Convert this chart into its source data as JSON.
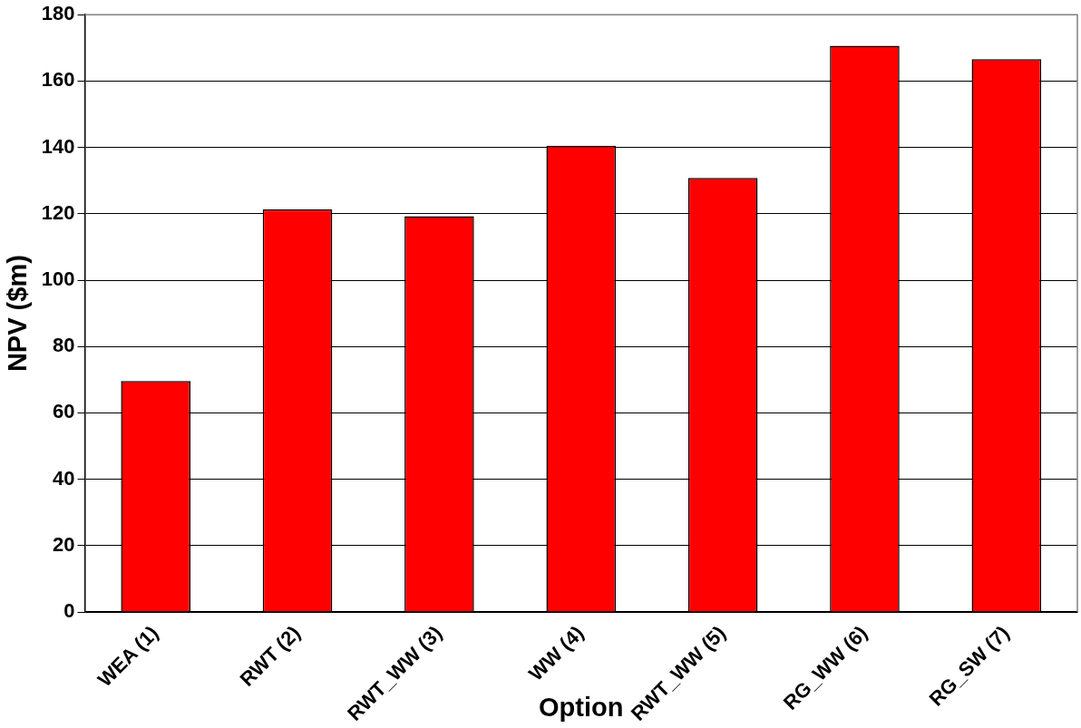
{
  "chart_data": {
    "type": "bar",
    "xlabel": "Option",
    "ylabel": "NPV ($m)",
    "categories": [
      "WEA (1)",
      "RWT (2)",
      "RWT_WW (3)",
      "WW (4)",
      "RWT_WW (5)",
      "RG_WW (6)",
      "RG_SW (7)"
    ],
    "values": [
      69.6,
      121.3,
      119.3,
      140.5,
      130.8,
      170.6,
      166.6
    ],
    "color": "#ff0000",
    "ylim": [
      0,
      180
    ],
    "yticks": [
      0,
      20,
      40,
      60,
      80,
      100,
      120,
      140,
      160,
      180
    ],
    "grid": "y",
    "legend": false
  }
}
